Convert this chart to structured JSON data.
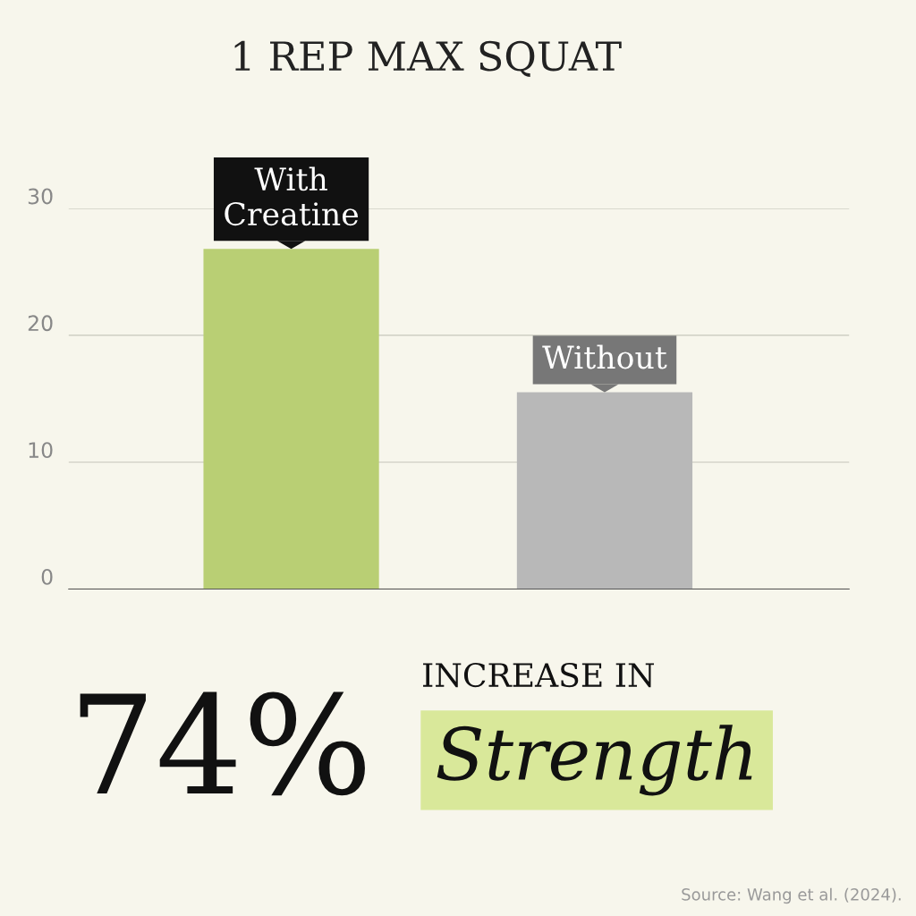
{
  "chart_data": {
    "type": "bar",
    "title": "1 REP MAX SQUAT",
    "categories": [
      "With\nCreatine",
      "Without"
    ],
    "values": [
      26.8,
      15.5
    ],
    "colors": [
      "#b9cf74",
      "#b8b8b8"
    ],
    "ylim": [
      0,
      30
    ],
    "yticks": [
      0,
      10,
      20,
      30
    ],
    "grid": "y",
    "tick_labels": "y",
    "annotations": [
      "74%",
      "INCREASE IN",
      "Strength",
      "Source: Wang et al. (2024)."
    ]
  }
}
